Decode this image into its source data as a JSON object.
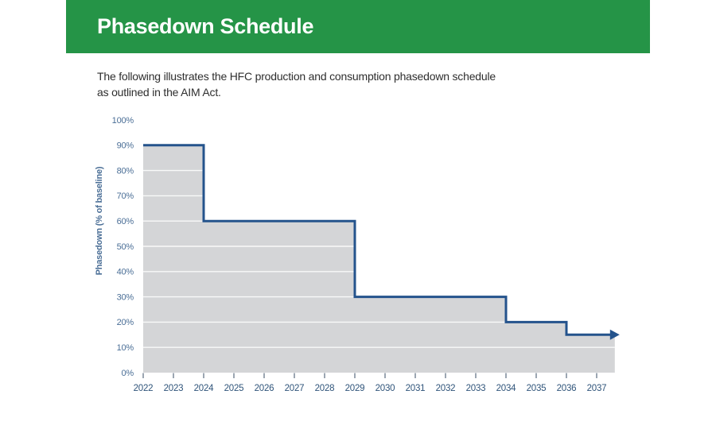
{
  "header": {
    "title": "Phasedown Schedule",
    "bar_color": "#259447",
    "text_color": "#ffffff"
  },
  "intro": {
    "line1": "The following illustrates the HFC production and consumption phasedown schedule",
    "line2": "as outlined in the AIM Act.",
    "text_color": "#2e2e2e"
  },
  "chart_data": {
    "type": "area",
    "subtype": "step-area",
    "title": "Phasedown Schedule",
    "xlabel": "",
    "ylabel": "Phasedown (% of baseline)",
    "ylim": [
      0,
      100
    ],
    "grid": true,
    "legend_position": "none",
    "x_tick_labels": [
      "2022",
      "2023",
      "2024",
      "2025",
      "2026",
      "2027",
      "2028",
      "2029",
      "2030",
      "2031",
      "2032",
      "2033",
      "2034",
      "2035",
      "2036",
      "2037"
    ],
    "y_tick_labels": [
      "0%",
      "10%",
      "20%",
      "30%",
      "40%",
      "50%",
      "60%",
      "70%",
      "80%",
      "90%",
      "100%"
    ],
    "series": [
      {
        "name": "HFC production and consumption phasedown",
        "steps": [
          {
            "start_year": 2022,
            "end_year": 2024,
            "percent": 90
          },
          {
            "start_year": 2024,
            "end_year": 2029,
            "percent": 60
          },
          {
            "start_year": 2029,
            "end_year": 2034,
            "percent": 30
          },
          {
            "start_year": 2034,
            "end_year": 2036,
            "percent": 20
          },
          {
            "start_year": 2036,
            "end_year": 2037.6,
            "percent": 15,
            "continues_with_arrow": true
          }
        ]
      }
    ],
    "colors": {
      "line": "#24538c",
      "fill": "#d4d5d7",
      "grid": "#ffffff",
      "y_tick_text": "#4a6e96",
      "x_tick_text": "#2f547a",
      "axis_title_text": "#4a6e96",
      "tick_mark": "#5a6b7e"
    }
  }
}
